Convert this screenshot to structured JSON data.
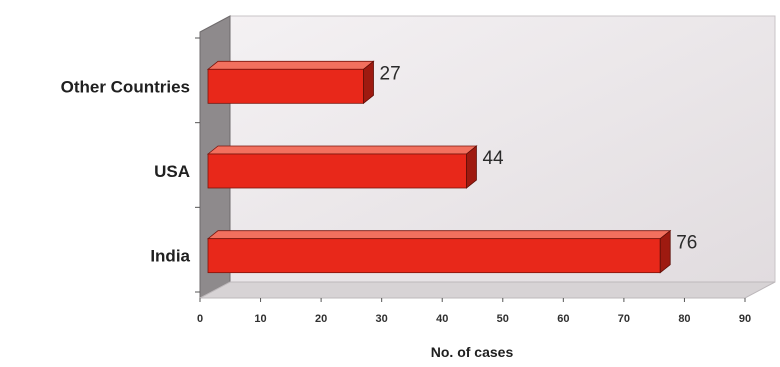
{
  "chart_data": {
    "type": "bar",
    "orientation": "horizontal",
    "categories": [
      "Other Countries",
      "USA",
      "India"
    ],
    "values": [
      27,
      44,
      76
    ],
    "data_labels": [
      "27",
      "44",
      "76"
    ],
    "title": "",
    "xlabel": "No. of cases",
    "ylabel": "",
    "xlim": [
      0,
      90
    ],
    "xticks": [
      "0",
      "10",
      "20",
      "30",
      "40",
      "50",
      "60",
      "70",
      "80",
      "90"
    ],
    "grid": false,
    "legend": "none",
    "style": "3d",
    "colors": {
      "bar": "#e8281a",
      "bar_top": "#f2705e",
      "bar_side": "#9e1a10",
      "wall": "#e9e5e7",
      "floor": "#d7d3d5"
    }
  }
}
